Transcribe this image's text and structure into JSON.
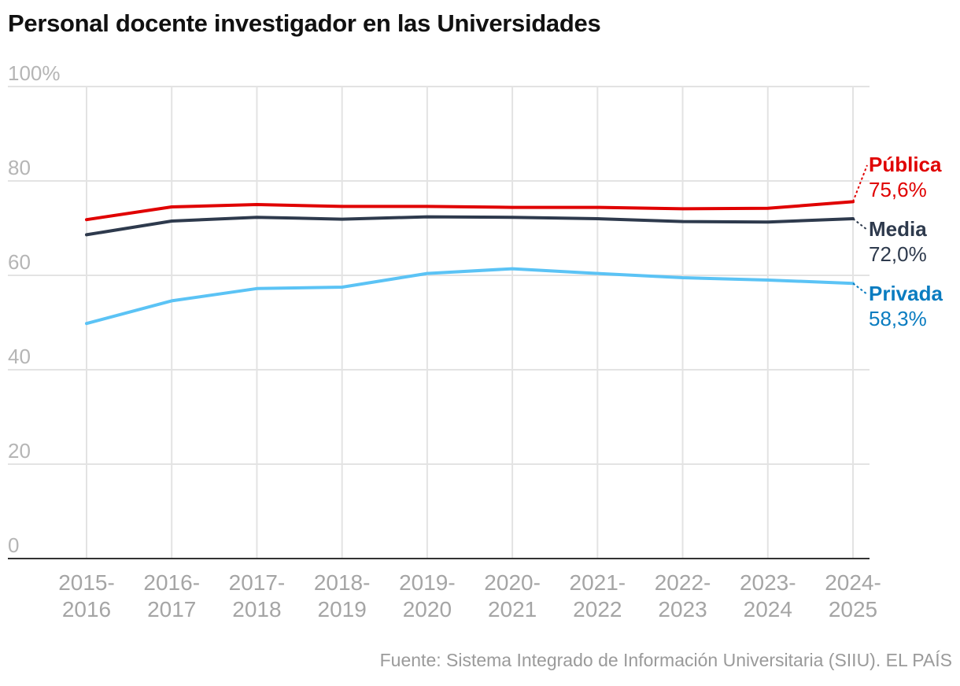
{
  "title": "Personal docente investigador en las Universidades",
  "source": "Fuente: Sistema Integrado de Información Universitaria (SIIU). EL PAÍS",
  "chart_data": {
    "type": "line",
    "title": "Personal docente investigador en las Universidades",
    "x": [
      "2015-2016",
      "2016-2017",
      "2017-2018",
      "2018-2019",
      "2019-2020",
      "2020-2021",
      "2021-2022",
      "2022-2023",
      "2023-2024",
      "2024-2025"
    ],
    "x_tick_labels": [
      [
        "2015-",
        "2016"
      ],
      [
        "2016-",
        "2017"
      ],
      [
        "2017-",
        "2018"
      ],
      [
        "2018-",
        "2019"
      ],
      [
        "2019-",
        "2020"
      ],
      [
        "2020-",
        "2021"
      ],
      [
        "2021-",
        "2022"
      ],
      [
        "2022-",
        "2023"
      ],
      [
        "2023-",
        "2024"
      ],
      [
        "2024-",
        "2025"
      ]
    ],
    "y_ticks": [
      "0",
      "20",
      "40",
      "60",
      "80",
      "100%"
    ],
    "y_tick_values": [
      0,
      20,
      40,
      60,
      80,
      100
    ],
    "ylim": [
      0,
      100
    ],
    "grid": true,
    "series": [
      {
        "name": "Pública",
        "value_label": "75,6%",
        "color": "#e00000",
        "values": [
          71.8,
          74.5,
          75.0,
          74.6,
          74.6,
          74.4,
          74.4,
          74.1,
          74.2,
          75.6
        ]
      },
      {
        "name": "Media",
        "value_label": "72,0%",
        "color": "#2e3a4d",
        "values": [
          68.6,
          71.5,
          72.3,
          71.9,
          72.4,
          72.3,
          72.0,
          71.4,
          71.3,
          72.0
        ]
      },
      {
        "name": "Privada",
        "value_label": "58,3%",
        "color": "#5bc3f5",
        "label_color": "#0a7cc0",
        "values": [
          49.8,
          54.6,
          57.2,
          57.5,
          60.4,
          61.4,
          60.4,
          59.5,
          59.0,
          58.3
        ]
      }
    ]
  }
}
